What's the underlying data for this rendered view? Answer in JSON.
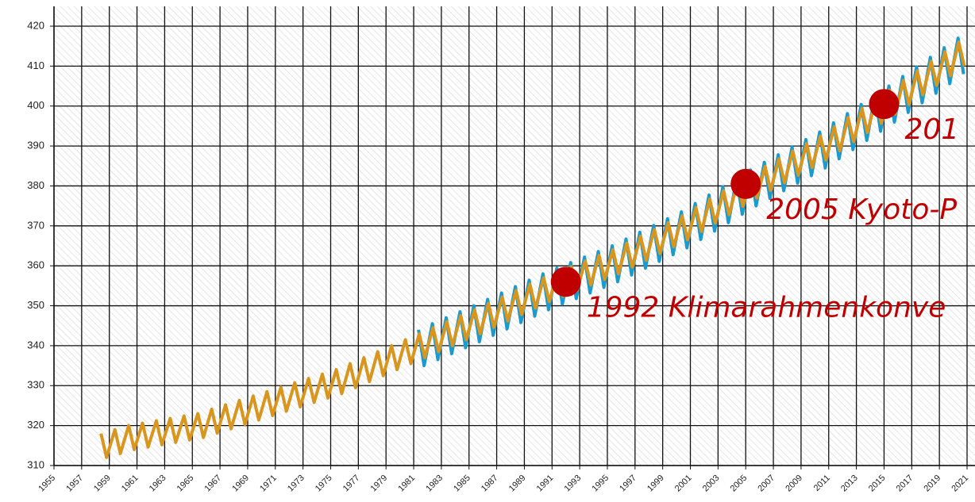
{
  "chart_data": {
    "type": "line",
    "xlim": [
      1955,
      2021
    ],
    "ylim": [
      310,
      420
    ],
    "xticks": [
      1955,
      1957,
      1959,
      1961,
      1963,
      1965,
      1967,
      1969,
      1971,
      1973,
      1975,
      1977,
      1979,
      1981,
      1983,
      1985,
      1987,
      1989,
      1991,
      1993,
      1995,
      1997,
      1999,
      2001,
      2003,
      2005,
      2007,
      2009,
      2011,
      2013,
      2015,
      2017,
      2019,
      2021
    ],
    "yticks": [
      310,
      320,
      330,
      340,
      350,
      360,
      370,
      380,
      390,
      400,
      410,
      420
    ],
    "grid": true,
    "series": [
      {
        "color": "#1a9bd0",
        "x": [
          1981.35,
          1981.75,
          1982.35,
          1982.75,
          1983.35,
          1983.75,
          1984.35,
          1984.75,
          1985.35,
          1985.75,
          1986.35,
          1986.75,
          1987.35,
          1987.75,
          1988.35,
          1988.75,
          1989.35,
          1989.75,
          1990.35,
          1990.75,
          1991.35,
          1991.75,
          1992.35,
          1992.75,
          1993.35,
          1993.75,
          1994.35,
          1994.75,
          1995.35,
          1995.75,
          1996.35,
          1996.75,
          1997.35,
          1997.75,
          1998.35,
          1998.75,
          1999.35,
          1999.75,
          2000.35,
          2000.75,
          2001.35,
          2001.75,
          2002.35,
          2002.75,
          2003.35,
          2003.75,
          2004.35,
          2004.75,
          2005.35,
          2005.75,
          2006.35,
          2006.75,
          2007.35,
          2007.75,
          2008.35,
          2008.75,
          2009.35,
          2009.75,
          2010.35,
          2010.75,
          2011.35,
          2011.75,
          2012.35,
          2012.75,
          2013.35,
          2013.75,
          2014.35,
          2014.75,
          2015.35,
          2015.75,
          2016.35,
          2016.75,
          2017.35,
          2017.75,
          2018.35,
          2018.75,
          2019.35,
          2019.75,
          2020.35,
          2020.75
        ],
        "values": [
          344.0,
          335.0,
          345.5,
          336.5,
          347.0,
          338.0,
          348.5,
          339.5,
          350.0,
          341.0,
          351.6,
          342.6,
          353.2,
          344.2,
          354.8,
          345.8,
          356.4,
          347.4,
          358.0,
          349.0,
          359.4,
          350.4,
          360.8,
          351.8,
          362.2,
          353.2,
          363.6,
          354.6,
          365.0,
          356.0,
          366.7,
          357.7,
          368.4,
          359.4,
          370.1,
          361.1,
          371.8,
          362.8,
          373.5,
          364.5,
          375.6,
          366.6,
          377.7,
          368.7,
          379.8,
          370.8,
          381.9,
          372.9,
          384.0,
          375.0,
          385.9,
          376.9,
          387.8,
          378.8,
          389.7,
          380.7,
          391.6,
          382.6,
          393.5,
          384.5,
          395.8,
          386.8,
          398.1,
          389.1,
          400.4,
          391.4,
          402.7,
          393.7,
          405.0,
          396.0,
          407.4,
          398.4,
          409.8,
          400.8,
          412.2,
          403.2,
          414.6,
          405.6,
          417.0,
          408.0
        ]
      },
      {
        "color": "#d9961f",
        "x": [
          1958.4,
          1958.8,
          1959.4,
          1959.8,
          1960.4,
          1960.8,
          1961.4,
          1961.8,
          1962.4,
          1962.8,
          1963.4,
          1963.8,
          1964.4,
          1964.8,
          1965.4,
          1965.8,
          1966.4,
          1966.8,
          1967.4,
          1967.8,
          1968.4,
          1968.8,
          1969.4,
          1969.8,
          1970.4,
          1970.8,
          1971.4,
          1971.8,
          1972.4,
          1972.8,
          1973.4,
          1973.8,
          1974.4,
          1974.8,
          1975.4,
          1975.8,
          1976.4,
          1976.8,
          1977.4,
          1977.8,
          1978.4,
          1978.8,
          1979.4,
          1979.8,
          1980.4,
          1980.8,
          1981.4,
          1981.8,
          1982.4,
          1982.8,
          1983.4,
          1983.8,
          1984.4,
          1984.8,
          1985.4,
          1985.8,
          1986.4,
          1986.8,
          1987.4,
          1987.8,
          1988.4,
          1988.8,
          1989.4,
          1989.8,
          1990.4,
          1990.8,
          1991.4,
          1991.8,
          1992.4,
          1992.8,
          1993.4,
          1993.8,
          1994.4,
          1994.8,
          1995.4,
          1995.8,
          1996.4,
          1996.8,
          1997.4,
          1997.8,
          1998.4,
          1998.8,
          1999.4,
          1999.8,
          2000.4,
          2000.8,
          2001.4,
          2001.8,
          2002.4,
          2002.8,
          2003.4,
          2003.8,
          2004.4,
          2004.8,
          2005.4,
          2005.8,
          2006.4,
          2006.8,
          2007.4,
          2007.8,
          2008.4,
          2008.8,
          2009.4,
          2009.8,
          2010.4,
          2010.8,
          2011.4,
          2011.8,
          2012.4,
          2012.8,
          2013.4,
          2013.8,
          2014.4,
          2014.8,
          2015.4,
          2015.8,
          2016.4,
          2016.8,
          2017.4,
          2017.8,
          2018.4,
          2018.8,
          2019.4,
          2019.8,
          2020.4,
          2020.8
        ],
        "values": [
          318.0,
          312.0,
          319.0,
          313.0,
          320.0,
          314.0,
          320.6,
          314.6,
          321.2,
          315.2,
          321.8,
          315.8,
          322.4,
          316.4,
          323.0,
          317.0,
          324.1,
          318.1,
          325.2,
          319.2,
          326.3,
          320.3,
          327.4,
          321.4,
          328.5,
          322.5,
          329.6,
          323.6,
          330.7,
          324.7,
          331.8,
          325.8,
          332.9,
          326.9,
          334.0,
          328.0,
          335.5,
          329.5,
          337.0,
          331.0,
          338.5,
          332.5,
          340.0,
          334.0,
          341.5,
          335.5,
          343.0,
          337.0,
          344.5,
          338.5,
          346.0,
          340.0,
          347.5,
          341.5,
          349.0,
          343.0,
          350.6,
          344.6,
          352.2,
          346.2,
          353.8,
          347.8,
          355.4,
          349.4,
          357.0,
          351.0,
          358.4,
          352.4,
          359.8,
          353.8,
          361.2,
          355.2,
          362.6,
          356.6,
          364.0,
          358.0,
          365.7,
          359.7,
          367.4,
          361.4,
          369.1,
          363.1,
          370.8,
          364.8,
          372.5,
          366.5,
          374.6,
          368.6,
          376.7,
          370.7,
          378.8,
          372.8,
          380.9,
          374.9,
          383.0,
          377.0,
          384.9,
          378.9,
          386.8,
          380.8,
          388.7,
          382.7,
          390.6,
          384.6,
          392.5,
          386.5,
          394.8,
          388.8,
          397.1,
          391.1,
          399.4,
          393.4,
          401.7,
          395.7,
          404.0,
          398.0,
          406.4,
          400.4,
          408.8,
          402.8,
          411.2,
          405.2,
          413.6,
          407.6,
          416.0,
          410.0
        ]
      }
    ],
    "annotations": [
      {
        "text": "1992 Klimarahmenkonve",
        "x": 1992,
        "y": 356,
        "color": "#c00000"
      },
      {
        "text": "2005 Kyoto-P",
        "x": 2005,
        "y": 380.5,
        "color": "#c00000"
      },
      {
        "text": "201",
        "x": 2015,
        "y": 400.5,
        "color": "#c00000"
      }
    ]
  }
}
